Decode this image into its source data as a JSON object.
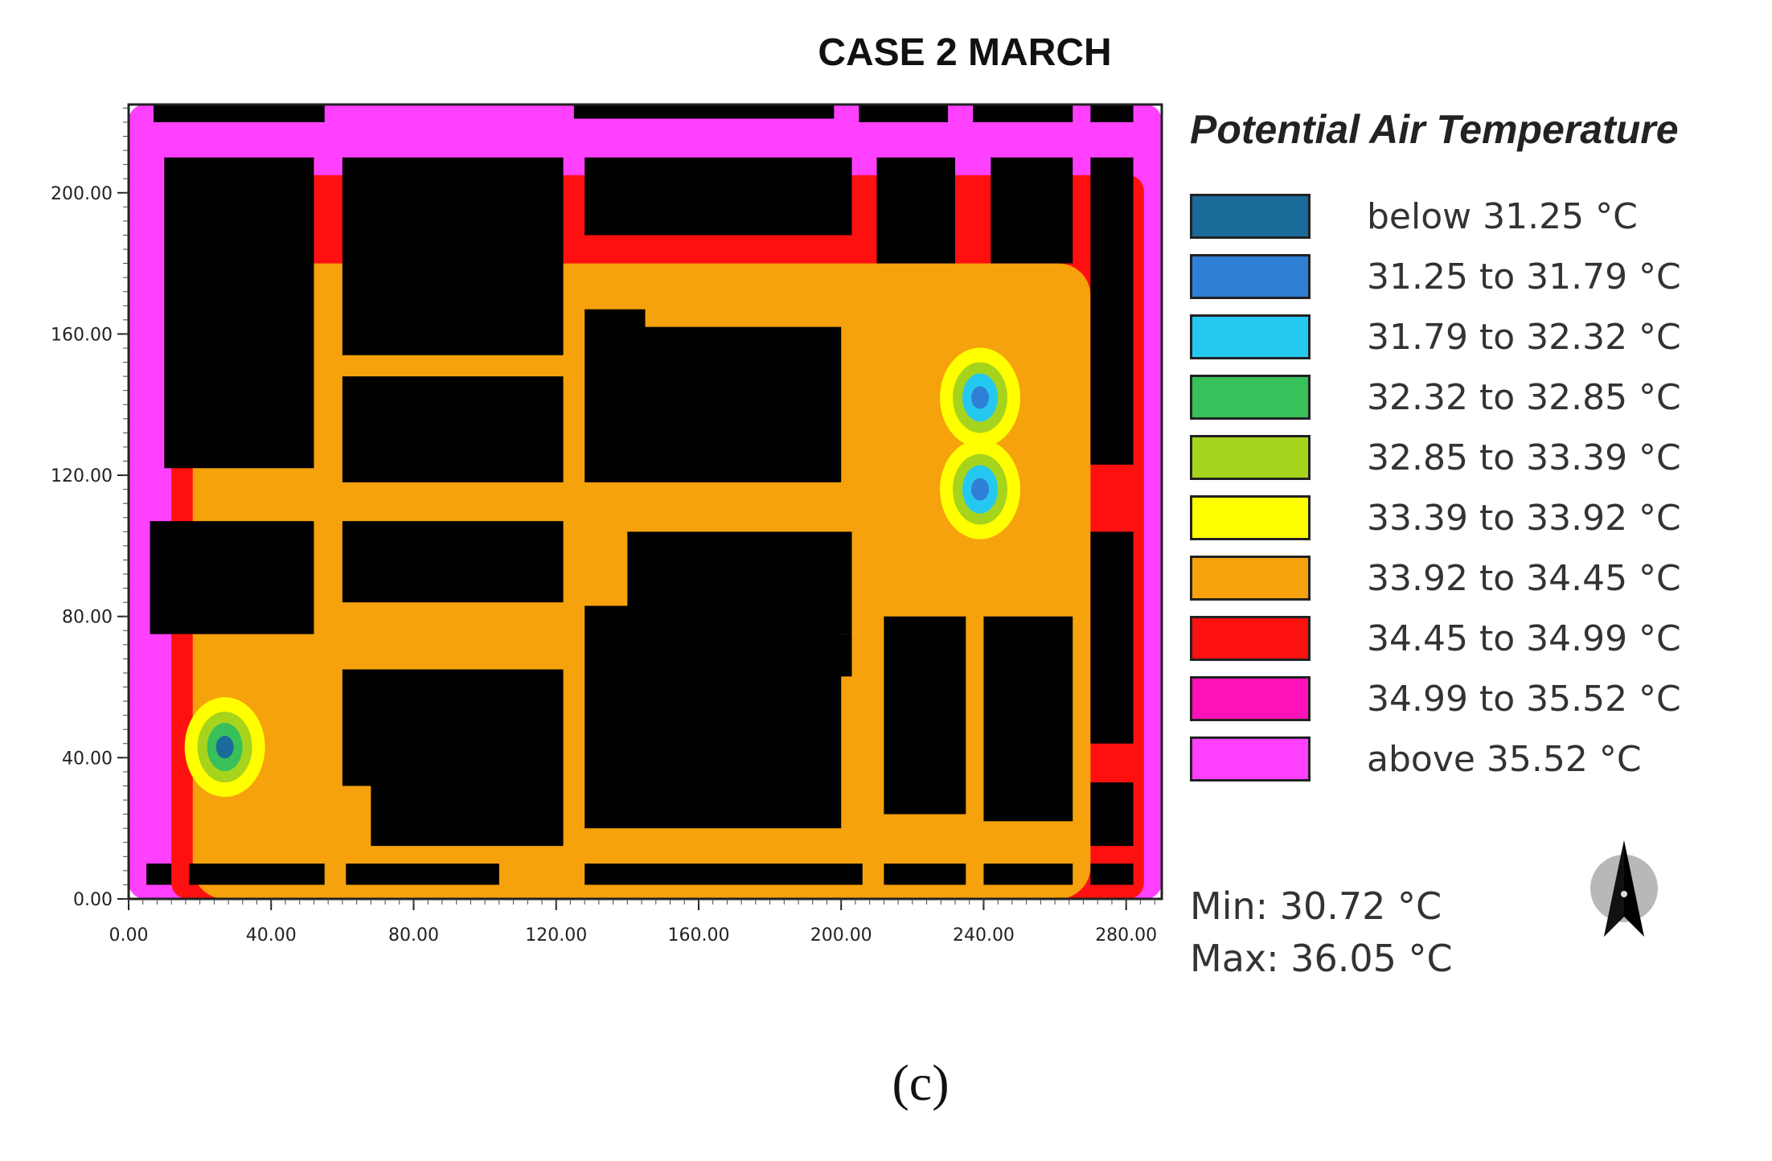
{
  "chart_data": {
    "type": "heatmap",
    "title": "CASE 2 MARCH",
    "xlim": [
      0,
      290
    ],
    "ylim": [
      0,
      225
    ],
    "x_ticks": [
      "0.00",
      "40.00",
      "80.00",
      "120.00",
      "160.00",
      "200.00",
      "240.00",
      "280.00"
    ],
    "y_ticks": [
      "0.00",
      "40.00",
      "80.00",
      "120.00",
      "160.00",
      "200.00"
    ],
    "legend": {
      "title": "Potential Air Temperature",
      "entries": [
        {
          "label": "below 31.25 °C",
          "color": "#1a6a9a"
        },
        {
          "label": "31.25 to 31.79 °C",
          "color": "#2f7fd6"
        },
        {
          "label": "31.79 to 32.32 °C",
          "color": "#25c8f0"
        },
        {
          "label": "32.32 to 32.85 °C",
          "color": "#38c05a"
        },
        {
          "label": "32.85 to 33.39 °C",
          "color": "#a6d41c"
        },
        {
          "label": "33.39 to 33.92 °C",
          "color": "#ffff00"
        },
        {
          "label": "33.92 to 34.45 °C",
          "color": "#f5a20c"
        },
        {
          "label": "34.45 to 34.99 °C",
          "color": "#ff1010"
        },
        {
          "label": "34.99 to 35.52 °C",
          "color": "#ff12b8"
        },
        {
          "label": "above 35.52 °C",
          "color": "#ff40ff"
        }
      ]
    },
    "min_label": "Min: 30.72 °C",
    "max_label": "Max: 36.05 °C",
    "building_color": "#000000",
    "background_regions": [
      {
        "class": "above 35.52 °C",
        "x0": 0,
        "y0": 0,
        "x1": 290,
        "y1": 225
      },
      {
        "class": "34.45 to 34.99 °C",
        "x0": 12,
        "y0": 0,
        "x1": 285,
        "y1": 205
      },
      {
        "class": "33.92 to 34.45 °C",
        "x0": 18,
        "y0": 0,
        "x1": 270,
        "y1": 180
      }
    ],
    "hotspots": [
      {
        "x": 27,
        "y": 43,
        "levels": [
          "33.39 to 33.92 °C",
          "32.85 to 33.39 °C",
          "32.32 to 32.85 °C",
          "below 31.25 °C"
        ]
      },
      {
        "x": 239,
        "y": 116,
        "levels": [
          "33.39 to 33.92 °C",
          "32.85 to 33.39 °C",
          "31.79 to 32.32 °C",
          "31.25 to 31.79 °C"
        ]
      },
      {
        "x": 239,
        "y": 142,
        "levels": [
          "33.39 to 33.92 °C",
          "32.85 to 33.39 °C",
          "31.79 to 32.32 °C",
          "31.25 to 31.79 °C"
        ]
      }
    ],
    "buildings": [
      [
        7,
        220,
        55,
        226
      ],
      [
        125,
        221,
        198,
        226
      ],
      [
        205,
        220,
        230,
        226
      ],
      [
        237,
        220,
        265,
        226
      ],
      [
        270,
        220,
        282,
        226
      ],
      [
        10,
        122,
        52,
        210
      ],
      [
        60,
        154,
        122,
        210
      ],
      [
        128,
        188,
        203,
        210
      ],
      [
        210,
        180,
        232,
        210
      ],
      [
        242,
        180,
        265,
        210
      ],
      [
        270,
        123,
        282,
        210
      ],
      [
        60,
        118,
        122,
        148
      ],
      [
        128,
        118,
        145,
        167
      ],
      [
        145,
        118,
        200,
        162
      ],
      [
        6,
        75,
        52,
        107
      ],
      [
        60,
        84,
        122,
        107
      ],
      [
        140,
        75,
        203,
        104
      ],
      [
        128,
        20,
        200,
        83
      ],
      [
        140,
        63,
        203,
        75
      ],
      [
        60,
        32,
        122,
        65
      ],
      [
        68,
        15,
        122,
        32
      ],
      [
        212,
        24,
        235,
        80
      ],
      [
        240,
        22,
        265,
        80
      ],
      [
        270,
        44,
        282,
        104
      ],
      [
        270,
        15,
        282,
        33
      ],
      [
        5,
        4,
        12,
        10
      ],
      [
        17,
        4,
        55,
        10
      ],
      [
        61,
        4,
        104,
        10
      ],
      [
        128,
        4,
        206,
        10
      ],
      [
        212,
        4,
        235,
        10
      ],
      [
        240,
        4,
        265,
        10
      ],
      [
        270,
        4,
        282,
        10
      ]
    ]
  },
  "panel_label": "(c)"
}
